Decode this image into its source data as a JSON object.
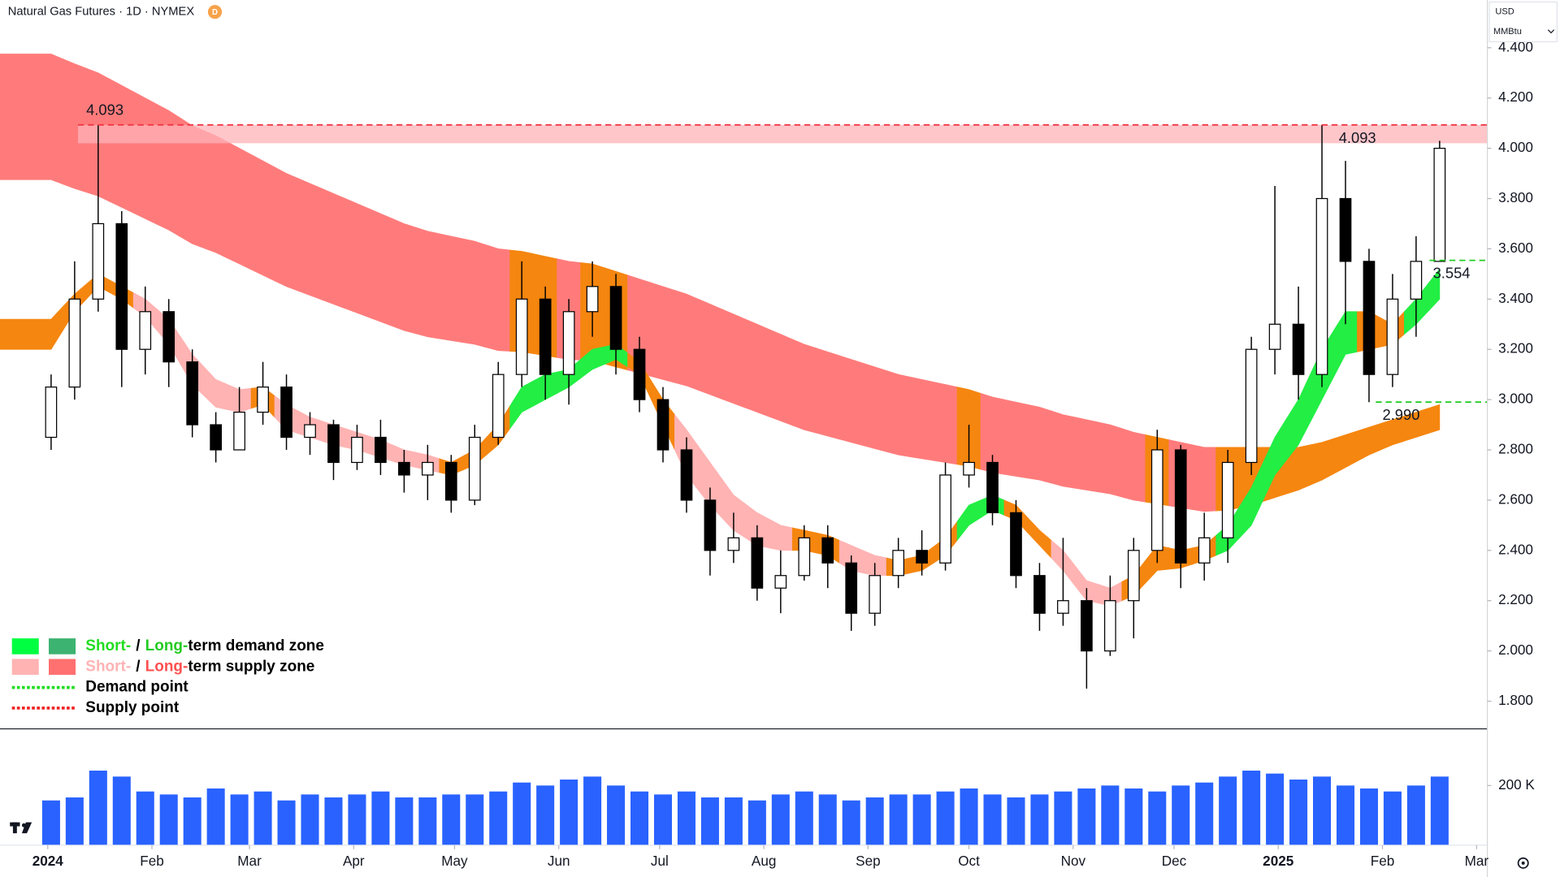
{
  "chart_data": {
    "type": "candlestick",
    "title": "Natural Gas Futures · 1D · NYMEX",
    "badge": "D",
    "currency": "USD",
    "unit": "MMBtu",
    "xlim": [
      -14.2,
      428.2
    ],
    "ylim": [
      1.69,
      4.59
    ],
    "yticks": [
      {
        "value": 1.8,
        "label": "1.800"
      },
      {
        "value": 2.0,
        "label": "2.000"
      },
      {
        "value": 2.2,
        "label": "2.200"
      },
      {
        "value": 2.4,
        "label": "2.400"
      },
      {
        "value": 2.6,
        "label": "2.600"
      },
      {
        "value": 2.8,
        "label": "2.800"
      },
      {
        "value": 3.0,
        "label": "3.000"
      },
      {
        "value": 3.2,
        "label": "3.200"
      },
      {
        "value": 3.4,
        "label": "3.400"
      },
      {
        "value": 3.6,
        "label": "3.600"
      },
      {
        "value": 3.8,
        "label": "3.800"
      },
      {
        "value": 4.0,
        "label": "4.000"
      },
      {
        "value": 4.2,
        "label": "4.200"
      },
      {
        "value": 4.4,
        "label": "4.400"
      }
    ],
    "xticks": [
      {
        "value": 0,
        "label": "2024"
      },
      {
        "value": 31,
        "label": "Feb"
      },
      {
        "value": 60,
        "label": "Mar"
      },
      {
        "value": 91,
        "label": "Apr"
      },
      {
        "value": 121,
        "label": "May"
      },
      {
        "value": 152,
        "label": "Jun"
      },
      {
        "value": 182,
        "label": "Jul"
      },
      {
        "value": 213,
        "label": "Aug"
      },
      {
        "value": 244,
        "label": "Sep"
      },
      {
        "value": 274,
        "label": "Oct"
      },
      {
        "value": 305,
        "label": "Nov"
      },
      {
        "value": 335,
        "label": "Dec"
      },
      {
        "value": 366,
        "label": "2025"
      },
      {
        "value": 397,
        "label": "Feb"
      },
      {
        "value": 425,
        "label": "Mar"
      }
    ],
    "grid": false,
    "up_color": "#ffffff",
    "down_color": "#000000",
    "x": [
      1,
      8,
      15,
      22,
      29,
      36,
      43,
      50,
      57,
      64,
      71,
      78,
      85,
      92,
      99,
      106,
      113,
      120,
      127,
      134,
      141,
      148,
      155,
      162,
      169,
      176,
      183,
      190,
      197,
      204,
      211,
      218,
      225,
      232,
      239,
      246,
      253,
      260,
      267,
      274,
      281,
      288,
      295,
      302,
      309,
      316,
      323,
      330,
      337,
      344,
      351,
      358,
      365,
      372,
      379,
      386,
      393,
      400,
      407,
      414
    ],
    "open": [
      2.85,
      3.05,
      3.4,
      3.7,
      3.2,
      3.35,
      3.15,
      2.9,
      2.8,
      2.95,
      3.05,
      2.85,
      2.9,
      2.75,
      2.85,
      2.75,
      2.7,
      2.75,
      2.6,
      2.85,
      3.1,
      3.4,
      3.1,
      3.35,
      3.45,
      3.2,
      3.0,
      2.8,
      2.6,
      2.4,
      2.45,
      2.25,
      2.3,
      2.45,
      2.35,
      2.15,
      2.3,
      2.4,
      2.35,
      2.7,
      2.75,
      2.55,
      2.3,
      2.15,
      2.2,
      2.0,
      2.2,
      2.4,
      2.8,
      2.35,
      2.45,
      2.75,
      3.2,
      3.3,
      3.1,
      3.8,
      3.55,
      3.1,
      3.4,
      3.55
    ],
    "high": [
      3.1,
      3.55,
      4.093,
      3.75,
      3.45,
      3.4,
      3.2,
      2.95,
      3.05,
      3.15,
      3.1,
      2.95,
      2.92,
      2.9,
      2.92,
      2.8,
      2.82,
      2.78,
      2.9,
      3.15,
      3.55,
      3.45,
      3.4,
      3.55,
      3.5,
      3.25,
      3.05,
      2.85,
      2.65,
      2.55,
      2.5,
      2.4,
      2.5,
      2.5,
      2.38,
      2.35,
      2.45,
      2.48,
      2.75,
      2.9,
      2.78,
      2.6,
      2.35,
      2.45,
      2.25,
      2.3,
      2.45,
      2.88,
      2.82,
      2.55,
      2.8,
      3.25,
      3.85,
      3.45,
      4.093,
      3.95,
      3.6,
      3.5,
      3.65,
      4.03
    ],
    "low": [
      2.8,
      3.0,
      3.35,
      3.05,
      3.1,
      3.05,
      2.85,
      2.75,
      2.8,
      2.9,
      2.8,
      2.78,
      2.68,
      2.72,
      2.7,
      2.63,
      2.6,
      2.55,
      2.58,
      2.82,
      3.05,
      3.0,
      2.98,
      3.25,
      3.1,
      2.95,
      2.75,
      2.55,
      2.3,
      2.35,
      2.2,
      2.15,
      2.28,
      2.25,
      2.08,
      2.1,
      2.25,
      2.3,
      2.32,
      2.65,
      2.5,
      2.25,
      2.08,
      2.1,
      1.85,
      1.98,
      2.05,
      2.35,
      2.25,
      2.28,
      2.35,
      2.7,
      3.1,
      3.0,
      3.05,
      3.3,
      2.99,
      3.05,
      3.25,
      3.55
    ],
    "close": [
      3.05,
      3.4,
      3.7,
      3.2,
      3.35,
      3.15,
      2.9,
      2.8,
      2.95,
      3.05,
      2.85,
      2.9,
      2.75,
      2.85,
      2.75,
      2.7,
      2.75,
      2.6,
      2.85,
      3.1,
      3.4,
      3.1,
      3.35,
      3.45,
      3.2,
      3.0,
      2.8,
      2.6,
      2.4,
      2.45,
      2.25,
      2.3,
      2.45,
      2.35,
      2.15,
      2.3,
      2.4,
      2.35,
      2.7,
      2.75,
      2.55,
      2.3,
      2.15,
      2.2,
      2.0,
      2.2,
      2.4,
      2.8,
      2.35,
      2.45,
      2.75,
      3.2,
      3.3,
      3.1,
      3.8,
      3.55,
      3.1,
      3.4,
      3.55,
      4.0
    ],
    "volume": {
      "color": "#2962ff",
      "ylim": [
        0,
        390000
      ],
      "yticks": [
        {
          "value": 200000,
          "label": "200 K"
        }
      ],
      "values": [
        150000,
        160000,
        250000,
        230000,
        180000,
        170000,
        160000,
        190000,
        170000,
        180000,
        150000,
        170000,
        160000,
        170000,
        180000,
        160000,
        160000,
        170000,
        170000,
        180000,
        210000,
        200000,
        220000,
        230000,
        200000,
        180000,
        170000,
        180000,
        160000,
        160000,
        150000,
        170000,
        180000,
        170000,
        150000,
        160000,
        170000,
        170000,
        180000,
        190000,
        170000,
        160000,
        170000,
        180000,
        190000,
        200000,
        190000,
        180000,
        200000,
        210000,
        230000,
        250000,
        240000,
        220000,
        230000,
        200000,
        190000,
        180000,
        200000,
        230000
      ]
    },
    "bands": [
      {
        "upper": [
          4.375,
          4.336,
          4.3,
          4.25,
          4.2,
          4.15,
          4.09,
          4.05,
          4.0,
          3.95,
          3.9,
          3.86,
          3.82,
          3.78,
          3.74,
          3.7,
          3.67,
          3.65,
          3.63,
          3.6,
          3.59,
          3.57,
          3.55,
          3.54,
          3.51,
          3.48,
          3.45,
          3.42,
          3.38,
          3.34,
          3.3,
          3.26,
          3.22,
          3.19,
          3.16,
          3.13,
          3.1,
          3.08,
          3.06,
          3.04,
          3.01,
          2.99,
          2.97,
          2.94,
          2.92,
          2.9,
          2.87,
          2.85,
          2.83,
          2.81,
          2.81,
          2.81,
          2.81,
          2.81,
          2.83,
          2.86,
          2.89,
          2.92,
          2.95,
          2.98
        ],
        "lower": [
          3.875,
          3.84,
          3.81,
          3.765,
          3.72,
          3.675,
          3.62,
          3.585,
          3.54,
          3.495,
          3.45,
          3.415,
          3.38,
          3.345,
          3.31,
          3.275,
          3.25,
          3.235,
          3.22,
          3.195,
          3.19,
          3.175,
          3.16,
          3.155,
          3.13,
          3.105,
          3.08,
          3.055,
          3.02,
          2.985,
          2.95,
          2.915,
          2.88,
          2.855,
          2.83,
          2.805,
          2.78,
          2.765,
          2.75,
          2.735,
          2.71,
          2.695,
          2.68,
          2.655,
          2.64,
          2.625,
          2.6,
          2.585,
          2.57,
          2.555,
          2.56,
          2.58,
          2.61,
          2.64,
          2.68,
          2.73,
          2.78,
          2.82,
          2.85,
          2.88
        ],
        "colors": [
          "#ff7b7b",
          "#ff7b7b",
          "#ff7b7b",
          "#ff7b7b",
          "#ff7b7b",
          "#ff7b7b",
          "#ff7b7b",
          "#ff7b7b",
          "#ff7b7b",
          "#ff7b7b",
          "#ff7b7b",
          "#ff7b7b",
          "#ff7b7b",
          "#ff7b7b",
          "#ff7b7b",
          "#ff7b7b",
          "#ff7b7b",
          "#ff7b7b",
          "#ff7b7b",
          "#ff7b7b",
          "#f5860f",
          "#f5860f",
          "#ff7b7b",
          "#f5860f",
          "#f5860f",
          "#ff7b7b",
          "#ff7b7b",
          "#ff7b7b",
          "#ff7b7b",
          "#ff7b7b",
          "#ff7b7b",
          "#ff7b7b",
          "#ff7b7b",
          "#ff7b7b",
          "#ff7b7b",
          "#ff7b7b",
          "#ff7b7b",
          "#ff7b7b",
          "#ff7b7b",
          "#f5860f",
          "#ff7b7b",
          "#ff7b7b",
          "#ff7b7b",
          "#ff7b7b",
          "#ff7b7b",
          "#ff7b7b",
          "#ff7b7b",
          "#f5860f",
          "#ff7b7b",
          "#ff7b7b",
          "#f5860f",
          "#f5860f",
          "#f5860f",
          "#f5860f",
          "#f5860f",
          "#f5860f",
          "#f5860f",
          "#f5860f",
          "#f5860f",
          "#f5860f"
        ]
      },
      {
        "upper": [
          3.32,
          3.42,
          3.5,
          3.45,
          3.4,
          3.32,
          3.18,
          3.08,
          3.04,
          3.05,
          2.98,
          2.93,
          2.9,
          2.87,
          2.84,
          2.8,
          2.78,
          2.75,
          2.8,
          2.9,
          3.05,
          3.1,
          3.12,
          3.2,
          3.22,
          3.15,
          3.0,
          2.88,
          2.75,
          2.62,
          2.55,
          2.5,
          2.48,
          2.46,
          2.42,
          2.38,
          2.36,
          2.38,
          2.45,
          2.58,
          2.62,
          2.58,
          2.48,
          2.4,
          2.28,
          2.25,
          2.3,
          2.42,
          2.4,
          2.42,
          2.5,
          2.65,
          2.85,
          3.0,
          3.2,
          3.35,
          3.35,
          3.3,
          3.4,
          3.52
        ],
        "lower": [
          3.2,
          3.35,
          3.45,
          3.4,
          3.33,
          3.22,
          3.06,
          2.97,
          2.95,
          2.98,
          2.88,
          2.85,
          2.82,
          2.8,
          2.77,
          2.74,
          2.72,
          2.7,
          2.74,
          2.82,
          2.95,
          3.0,
          3.05,
          3.12,
          3.16,
          3.1,
          2.9,
          2.7,
          2.58,
          2.48,
          2.42,
          2.4,
          2.4,
          2.38,
          2.32,
          2.3,
          2.3,
          2.32,
          2.38,
          2.5,
          2.56,
          2.52,
          2.42,
          2.32,
          2.2,
          2.18,
          2.22,
          2.32,
          2.33,
          2.36,
          2.4,
          2.5,
          2.7,
          2.82,
          3.0,
          3.18,
          3.2,
          3.22,
          3.3,
          3.4
        ],
        "colors": [
          "#f5860f",
          "#f5860f",
          "#f5860f",
          "#f5860f",
          "#ffb3b3",
          "#ffb3b3",
          "#ffb3b3",
          "#ffb3b3",
          "#ffb3b3",
          "#f5860f",
          "#ffb3b3",
          "#ffb3b3",
          "#ffb3b3",
          "#ffb3b3",
          "#ffb3b3",
          "#ffb3b3",
          "#ffb3b3",
          "#f5860f",
          "#f5860f",
          "#f5860f",
          "#22ee44",
          "#22ee44",
          "#22ee44",
          "#22ee44",
          "#22ee44",
          "#f5860f",
          "#f5860f",
          "#ffb3b3",
          "#ffb3b3",
          "#ffb3b3",
          "#ffb3b3",
          "#ffb3b3",
          "#f5860f",
          "#f5860f",
          "#ffb3b3",
          "#ffb3b3",
          "#f5860f",
          "#f5860f",
          "#f5860f",
          "#22ee44",
          "#22ee44",
          "#f5860f",
          "#f5860f",
          "#ffb3b3",
          "#ffb3b3",
          "#ffb3b3",
          "#f5860f",
          "#f5860f",
          "#f5860f",
          "#f5860f",
          "#22ee44",
          "#22ee44",
          "#22ee44",
          "#22ee44",
          "#22ee44",
          "#22ee44",
          "#f5860f",
          "#f5860f",
          "#22ee44",
          "#22ee44"
        ]
      }
    ],
    "supply_zone": {
      "low": 4.02,
      "high": 4.093,
      "x": 9,
      "color": "#ffb3b8"
    },
    "levels": [
      {
        "value": 4.093,
        "x": 9,
        "color": "#f23645",
        "labels": [
          {
            "text": "4.093",
            "x": 15
          },
          {
            "text": "4.093",
            "x": 384
          }
        ]
      },
      {
        "value": 3.554,
        "x": 411,
        "color": "#22cc22",
        "labels": [
          {
            "text": "3.554",
            "x": 412
          }
        ]
      },
      {
        "value": 2.99,
        "x": 395,
        "color": "#22cc22",
        "labels": [
          {
            "text": "2.990",
            "x": 397
          }
        ]
      }
    ],
    "legend": [
      {
        "swatches": [
          "#00ff40",
          "#3cb371"
        ],
        "parts": [
          {
            "text": "Short-",
            "color": "#22dd22"
          },
          {
            "text": "/",
            "color": "#000000"
          },
          {
            "text": "Long-",
            "color": "#22cc22"
          },
          {
            "text": "term demand zone",
            "color": "#000000"
          }
        ]
      },
      {
        "swatches": [
          "#ffb3b3",
          "#ff7070"
        ],
        "parts": [
          {
            "text": "Short-",
            "color": "#ffb3b3"
          },
          {
            "text": "/",
            "color": "#000000"
          },
          {
            "text": "Long-",
            "color": "#ff5050"
          },
          {
            "text": "term supply zone",
            "color": "#000000"
          }
        ]
      },
      {
        "dash": "#22dd22",
        "parts": [
          {
            "text": "Demand point",
            "color": "#000000"
          }
        ]
      },
      {
        "dash": "#ee2222",
        "parts": [
          {
            "text": "Supply point",
            "color": "#000000"
          }
        ]
      }
    ]
  }
}
